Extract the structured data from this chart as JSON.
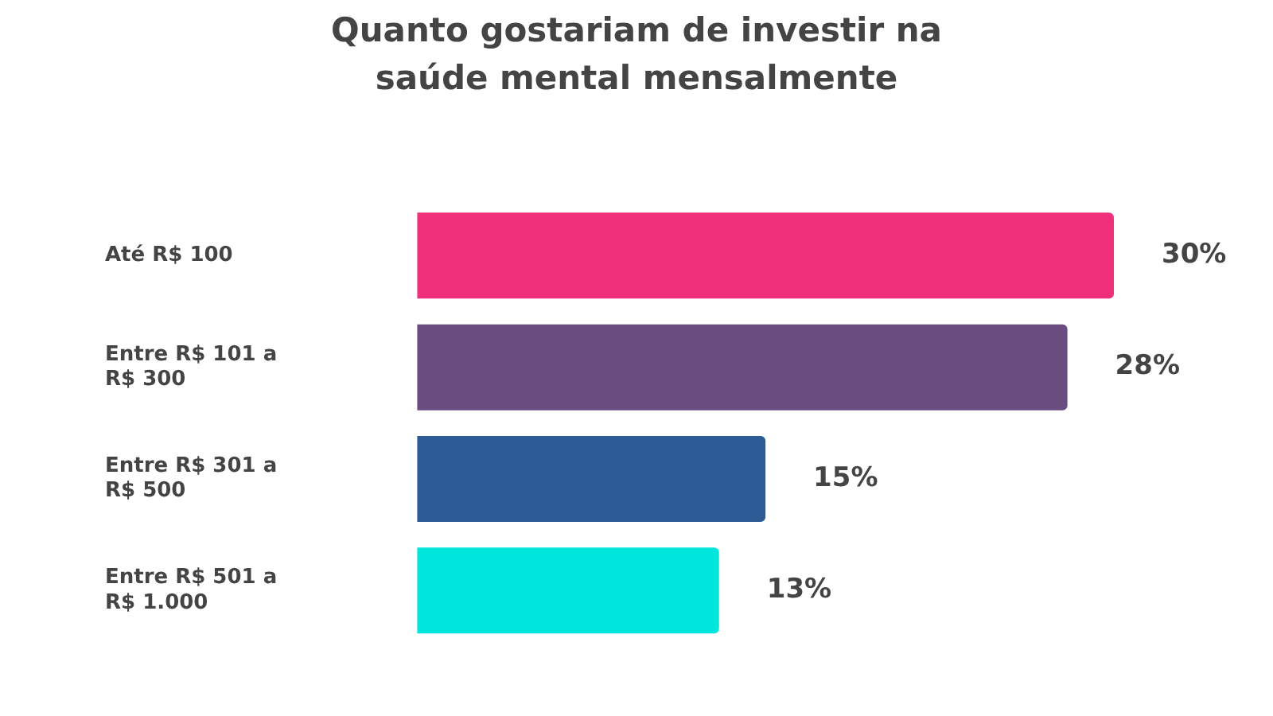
{
  "chart_data": {
    "type": "bar",
    "orientation": "horizontal",
    "title": "Quanto gostariam de investir na saúde mental mensalmente",
    "categories": [
      "Até R$ 100",
      "Entre R$ 101 a R$ 300",
      "Entre R$ 301 a R$ 500",
      "Entre R$ 501 a R$ 1.000"
    ],
    "values": [
      30,
      28,
      15,
      13
    ],
    "colors": [
      "#f0307a",
      "#6b4c80",
      "#2d5b96",
      "#00e5dc"
    ],
    "value_labels": [
      "30%",
      "28%",
      "15%",
      "13%"
    ],
    "legend": false
  }
}
